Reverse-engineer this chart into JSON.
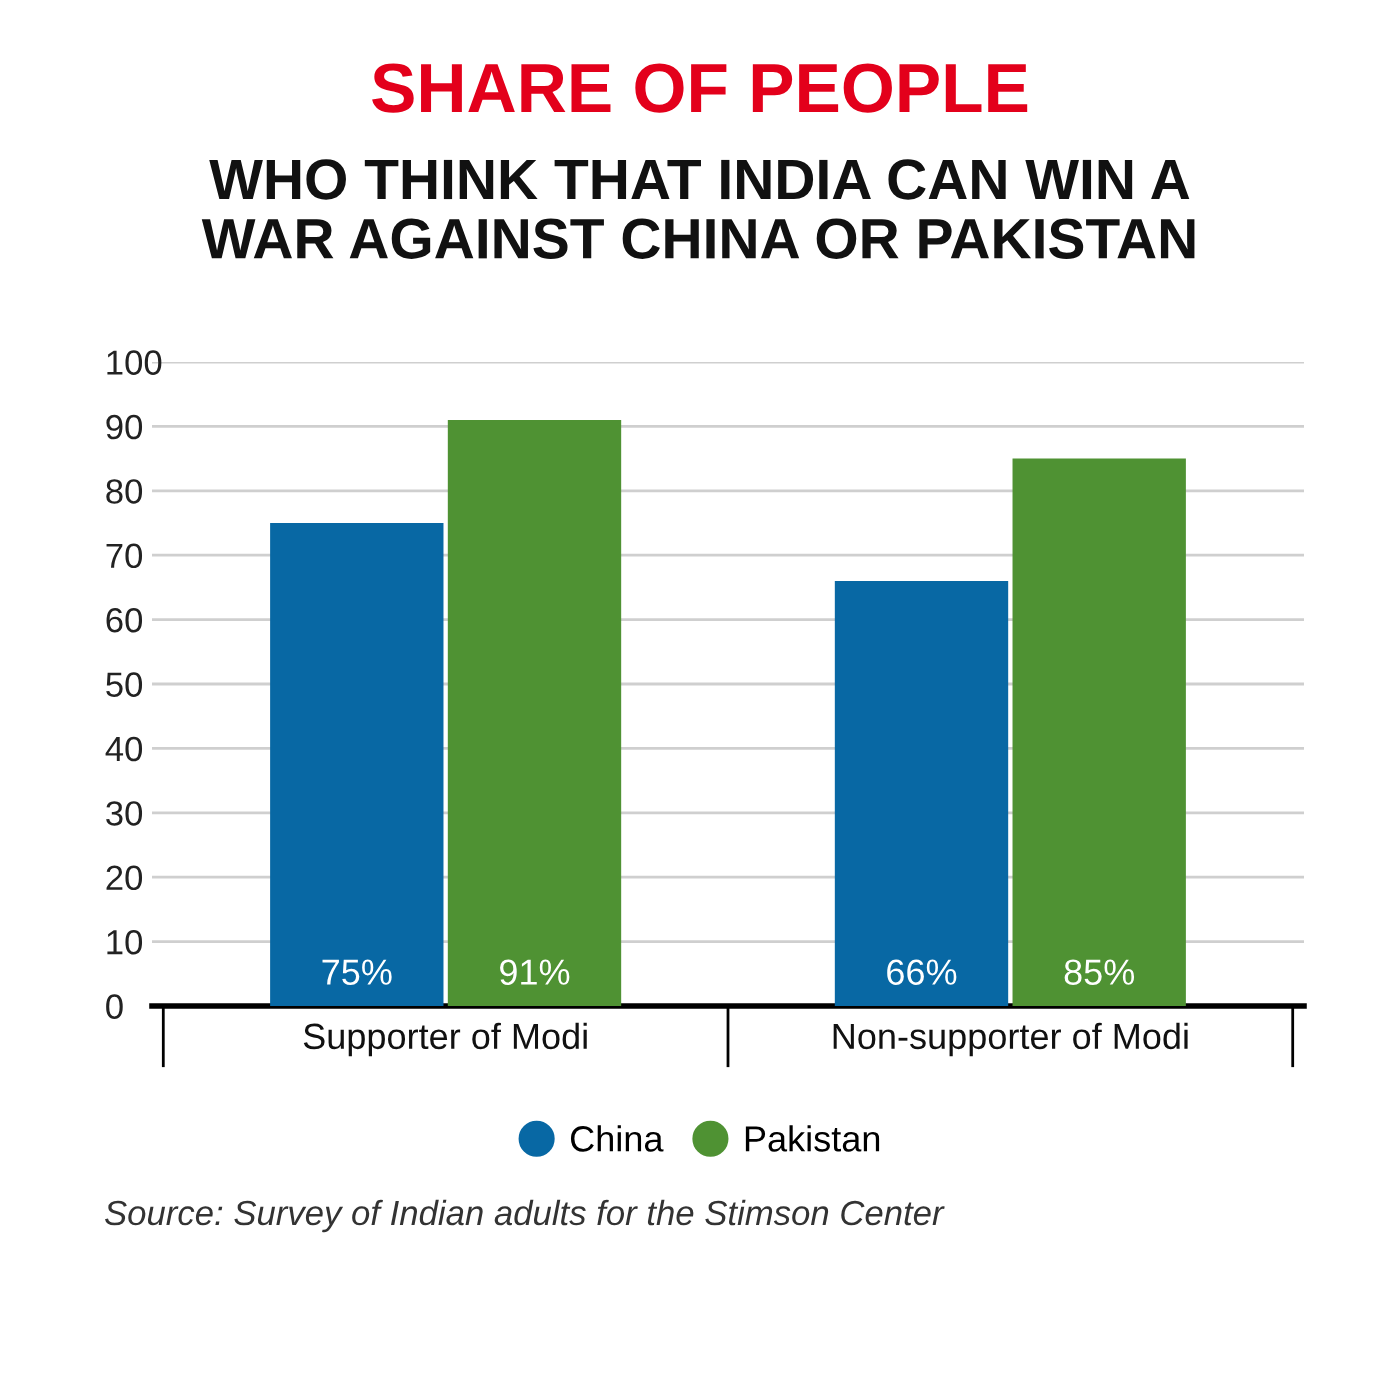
{
  "chart_data": {
    "type": "bar",
    "title": "SHARE OF PEOPLE",
    "subtitle": "WHO THINK THAT INDIA CAN WIN A\nWAR AGAINST CHINA OR PAKISTAN",
    "categories": [
      "Supporter of Modi",
      "Non-supporter of Modi"
    ],
    "series": [
      {
        "name": "China",
        "color": "#0868a4",
        "values": [
          75,
          66
        ],
        "value_labels": [
          "75%",
          "66%"
        ]
      },
      {
        "name": "Pakistan",
        "color": "#4f9233",
        "values": [
          91,
          85
        ],
        "value_labels": [
          "91%",
          "85%"
        ]
      }
    ],
    "ylim": [
      0,
      100
    ],
    "yticks": [
      0,
      10,
      20,
      30,
      40,
      50,
      60,
      70,
      80,
      90,
      100
    ],
    "grid": "y",
    "legend": "bottom",
    "annotations": [
      "Source: Survey of Indian adults for the Stimson Center"
    ]
  }
}
